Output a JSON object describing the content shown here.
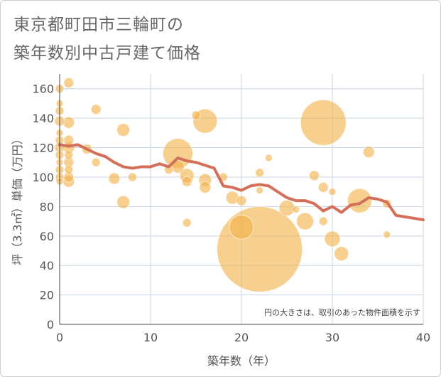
{
  "title_lines": [
    "東京都町田市三輪町の",
    "築年数別中古戸建て価格"
  ],
  "chart_data": {
    "type": "scatter",
    "xlabel": "築年数（年）",
    "ylabel": "坪（3.3㎡）単価（万円）",
    "xlim": [
      0,
      40
    ],
    "ylim": [
      0,
      170
    ],
    "x_ticks": [
      "0",
      "10",
      "20",
      "30",
      "40"
    ],
    "y_ticks": [
      "0",
      "20",
      "40",
      "60",
      "80",
      "100",
      "120",
      "140",
      "160"
    ],
    "grid": true,
    "annotation": "円の大きさは、取引のあった物件面積を示す",
    "colors": {
      "bubble": "#f2b24a",
      "line": "#d4705a",
      "grid": "#c8d4e0"
    },
    "bubbles": [
      {
        "x": 0,
        "y": 160,
        "s": 6
      },
      {
        "x": 0,
        "y": 150,
        "s": 5
      },
      {
        "x": 0,
        "y": 145,
        "s": 6
      },
      {
        "x": 0,
        "y": 138,
        "s": 7
      },
      {
        "x": 0,
        "y": 130,
        "s": 5
      },
      {
        "x": 0,
        "y": 125,
        "s": 6
      },
      {
        "x": 0,
        "y": 120,
        "s": 7
      },
      {
        "x": 0,
        "y": 115,
        "s": 6
      },
      {
        "x": 0,
        "y": 110,
        "s": 5
      },
      {
        "x": 0,
        "y": 105,
        "s": 6
      },
      {
        "x": 0,
        "y": 100,
        "s": 6
      },
      {
        "x": 0,
        "y": 97,
        "s": 5
      },
      {
        "x": 1,
        "y": 164,
        "s": 7
      },
      {
        "x": 1,
        "y": 137,
        "s": 8
      },
      {
        "x": 1,
        "y": 125,
        "s": 7
      },
      {
        "x": 1,
        "y": 120,
        "s": 8
      },
      {
        "x": 1,
        "y": 115,
        "s": 6
      },
      {
        "x": 1,
        "y": 110,
        "s": 7
      },
      {
        "x": 1,
        "y": 105,
        "s": 6
      },
      {
        "x": 1,
        "y": 100,
        "s": 7
      },
      {
        "x": 1,
        "y": 97,
        "s": 8
      },
      {
        "x": 3,
        "y": 119,
        "s": 7
      },
      {
        "x": 4,
        "y": 146,
        "s": 7
      },
      {
        "x": 4,
        "y": 110,
        "s": 6
      },
      {
        "x": 6,
        "y": 99,
        "s": 8
      },
      {
        "x": 7,
        "y": 132,
        "s": 9
      },
      {
        "x": 7,
        "y": 83,
        "s": 9
      },
      {
        "x": 8,
        "y": 100,
        "s": 6
      },
      {
        "x": 12,
        "y": 105,
        "s": 6
      },
      {
        "x": 13,
        "y": 116,
        "s": 21
      },
      {
        "x": 13,
        "y": 107,
        "s": 9
      },
      {
        "x": 14,
        "y": 101,
        "s": 10
      },
      {
        "x": 14,
        "y": 97,
        "s": 7
      },
      {
        "x": 14,
        "y": 69,
        "s": 6
      },
      {
        "x": 15,
        "y": 142,
        "s": 6
      },
      {
        "x": 16,
        "y": 138,
        "s": 17
      },
      {
        "x": 16,
        "y": 98,
        "s": 9
      },
      {
        "x": 16,
        "y": 93,
        "s": 8
      },
      {
        "x": 18,
        "y": 100,
        "s": 6
      },
      {
        "x": 19,
        "y": 86,
        "s": 9
      },
      {
        "x": 20,
        "y": 84,
        "s": 7
      },
      {
        "x": 20,
        "y": 66,
        "s": 17
      },
      {
        "x": 22,
        "y": 51,
        "s": 60
      },
      {
        "x": 22,
        "y": 103,
        "s": 6
      },
      {
        "x": 22,
        "y": 91,
        "s": 5
      },
      {
        "x": 23,
        "y": 113,
        "s": 5
      },
      {
        "x": 25,
        "y": 79,
        "s": 11
      },
      {
        "x": 26,
        "y": 78,
        "s": 5
      },
      {
        "x": 27,
        "y": 70,
        "s": 12
      },
      {
        "x": 28,
        "y": 101,
        "s": 7
      },
      {
        "x": 29,
        "y": 137,
        "s": 32
      },
      {
        "x": 29,
        "y": 93,
        "s": 7
      },
      {
        "x": 29,
        "y": 70,
        "s": 6
      },
      {
        "x": 30,
        "y": 90,
        "s": 5
      },
      {
        "x": 30,
        "y": 58,
        "s": 11
      },
      {
        "x": 31,
        "y": 48,
        "s": 10
      },
      {
        "x": 33,
        "y": 84,
        "s": 17
      },
      {
        "x": 34,
        "y": 117,
        "s": 8
      },
      {
        "x": 36,
        "y": 82,
        "s": 6
      },
      {
        "x": 36,
        "y": 61,
        "s": 5
      }
    ],
    "trend": {
      "x": [
        0,
        1,
        2,
        3,
        4,
        5,
        6,
        7,
        8,
        9,
        10,
        11,
        12,
        13,
        14,
        15,
        16,
        17,
        18,
        19,
        20,
        21,
        22,
        23,
        24,
        25,
        26,
        27,
        28,
        29,
        30,
        31,
        32,
        33,
        34,
        35,
        36,
        37,
        38,
        39,
        40
      ],
      "y": [
        122,
        121,
        122,
        119,
        116,
        114,
        110,
        107,
        106,
        107,
        107,
        109,
        107,
        113,
        111,
        110,
        108,
        106,
        94,
        93,
        91,
        94,
        95,
        94,
        90,
        86,
        84,
        84,
        82,
        77,
        80,
        76,
        81,
        82,
        86,
        85,
        83,
        74,
        73,
        72,
        71
      ]
    }
  }
}
